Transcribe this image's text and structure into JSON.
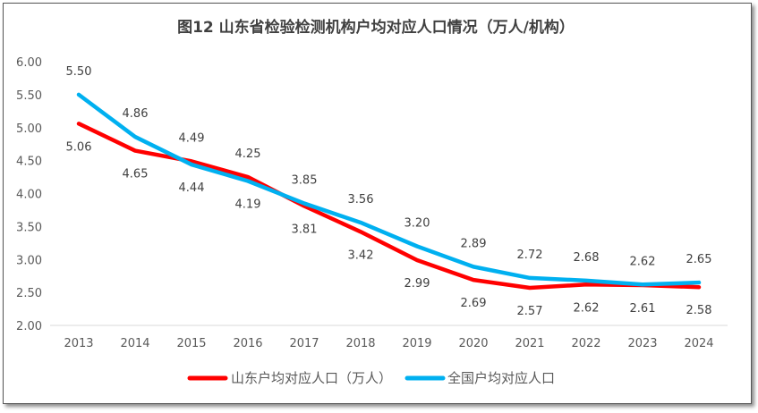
{
  "chart_data": {
    "type": "line",
    "title": "图12  山东省检验检测机构户均对应人口情况（万人/机构）",
    "xlabel": "",
    "ylabel": "",
    "categories": [
      "2013",
      "2014",
      "2015",
      "2016",
      "2017",
      "2018",
      "2019",
      "2020",
      "2021",
      "2022",
      "2023",
      "2024"
    ],
    "ylim": [
      2.0,
      6.0
    ],
    "yticks": [
      "2.00",
      "2.50",
      "3.00",
      "3.50",
      "4.00",
      "4.50",
      "5.00",
      "5.50",
      "6.00"
    ],
    "grid": false,
    "legend_position": "bottom",
    "series": [
      {
        "name": "山东户均对应人口（万人）",
        "color": "#ff0000",
        "values": [
          5.06,
          4.65,
          4.49,
          4.25,
          3.81,
          3.42,
          2.99,
          2.69,
          2.57,
          2.62,
          2.61,
          2.58
        ]
      },
      {
        "name": "全国户均对应人口",
        "color": "#00b0f0",
        "values": [
          5.5,
          4.86,
          4.44,
          4.19,
          3.85,
          3.56,
          3.2,
          2.89,
          2.72,
          2.68,
          2.62,
          2.65
        ]
      }
    ]
  }
}
